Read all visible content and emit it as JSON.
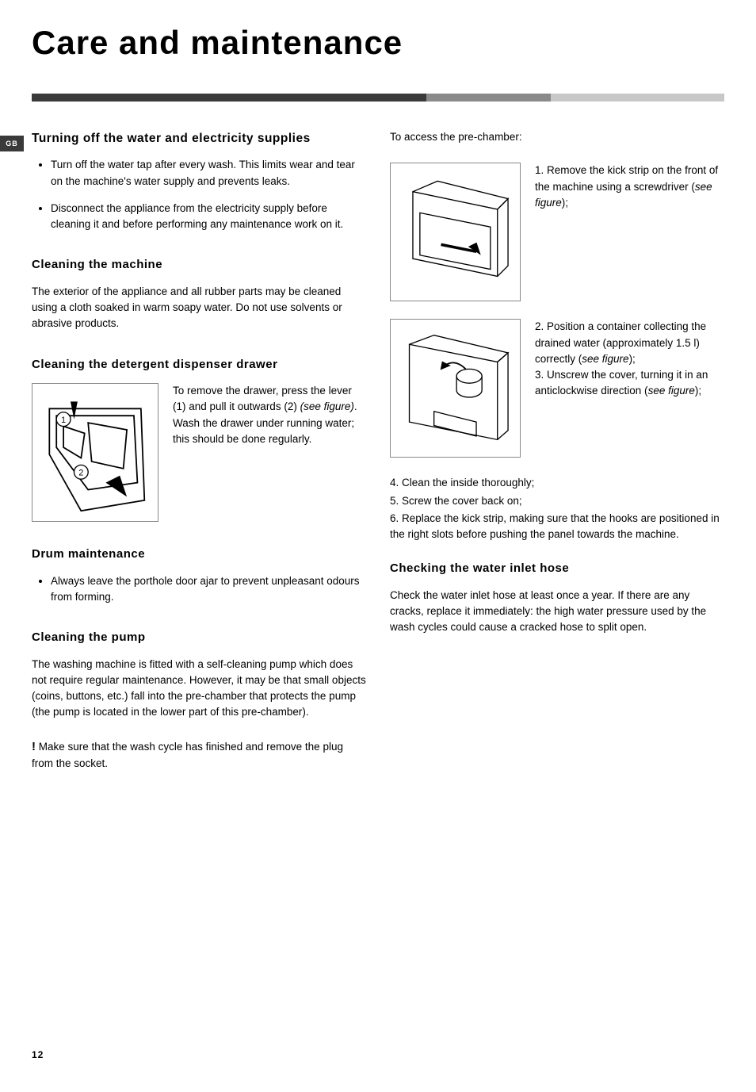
{
  "badge": "GB",
  "title": "Care and maintenance",
  "divider_colors": {
    "dark": "#3a3a3a",
    "mid": "#8a8a8a",
    "light": "#c8c8c8"
  },
  "left": {
    "sec1": {
      "head": "Turning off the water and electricity supplies",
      "bullets": [
        "Turn off the water tap after every wash. This limits wear and tear on the machine's water supply and prevents leaks.",
        "Disconnect the appliance from the electricity supply before cleaning it and before performing any maintenance work on it."
      ]
    },
    "sec2": {
      "head": "Cleaning the machine",
      "para": "The exterior of the appliance and all rubber parts may be cleaned using a cloth soaked in warm soapy water. Do not use solvents or abrasive products."
    },
    "sec3": {
      "head": "Cleaning the detergent dispenser drawer",
      "fig_text_before": "To remove the drawer, press the lever (1) and pull it outwards (2) ",
      "fig_text_italic": "(see figure)",
      "fig_text_after": ".\nWash the drawer under running water; this should be done regularly."
    },
    "sec4": {
      "head": "Drum  maintenance",
      "bullets": [
        "Always leave the porthole door ajar to prevent unpleasant odours from forming."
      ]
    },
    "sec5": {
      "head": "Cleaning the pump",
      "para1": "The washing machine is fitted with a self-cleaning pump which does not require regular maintenance. However, it may be that small objects (coins, buttons, etc.) fall into the pre-chamber that protects the pump (the pump is located in the lower part of this pre-chamber).",
      "warn": " Make sure that the wash cycle has finished and remove the plug from the socket."
    }
  },
  "right": {
    "intro": "To access the pre-chamber:",
    "step1_a": "1. Remove the kick strip on the front of the machine using a screwdriver (",
    "step1_i": "see figure",
    "step1_b": ");",
    "step2_a": "2. Position a container collecting the drained water (approximately 1.5 l) correctly (",
    "step2_i": "see figure",
    "step2_b": ");",
    "step3_a": "3. Unscrew the cover, turning it in an anticlockwise direction (",
    "step3_i": "see figure",
    "step3_b": ");",
    "nums": {
      "n4": "4. Clean the inside thoroughly;",
      "n5": "5. Screw the cover back on;",
      "n6": "6. Replace the kick strip, making sure that the hooks are positioned in the right slots before pushing the panel towards the machine."
    },
    "sec_hose": {
      "head": "Checking the water inlet hose",
      "para": "Check the water inlet hose at least once a year. If there are any cracks, replace it immediately: the high water pressure used by the wash cycles could cause a cracked hose to split open."
    }
  },
  "page_number": "12"
}
